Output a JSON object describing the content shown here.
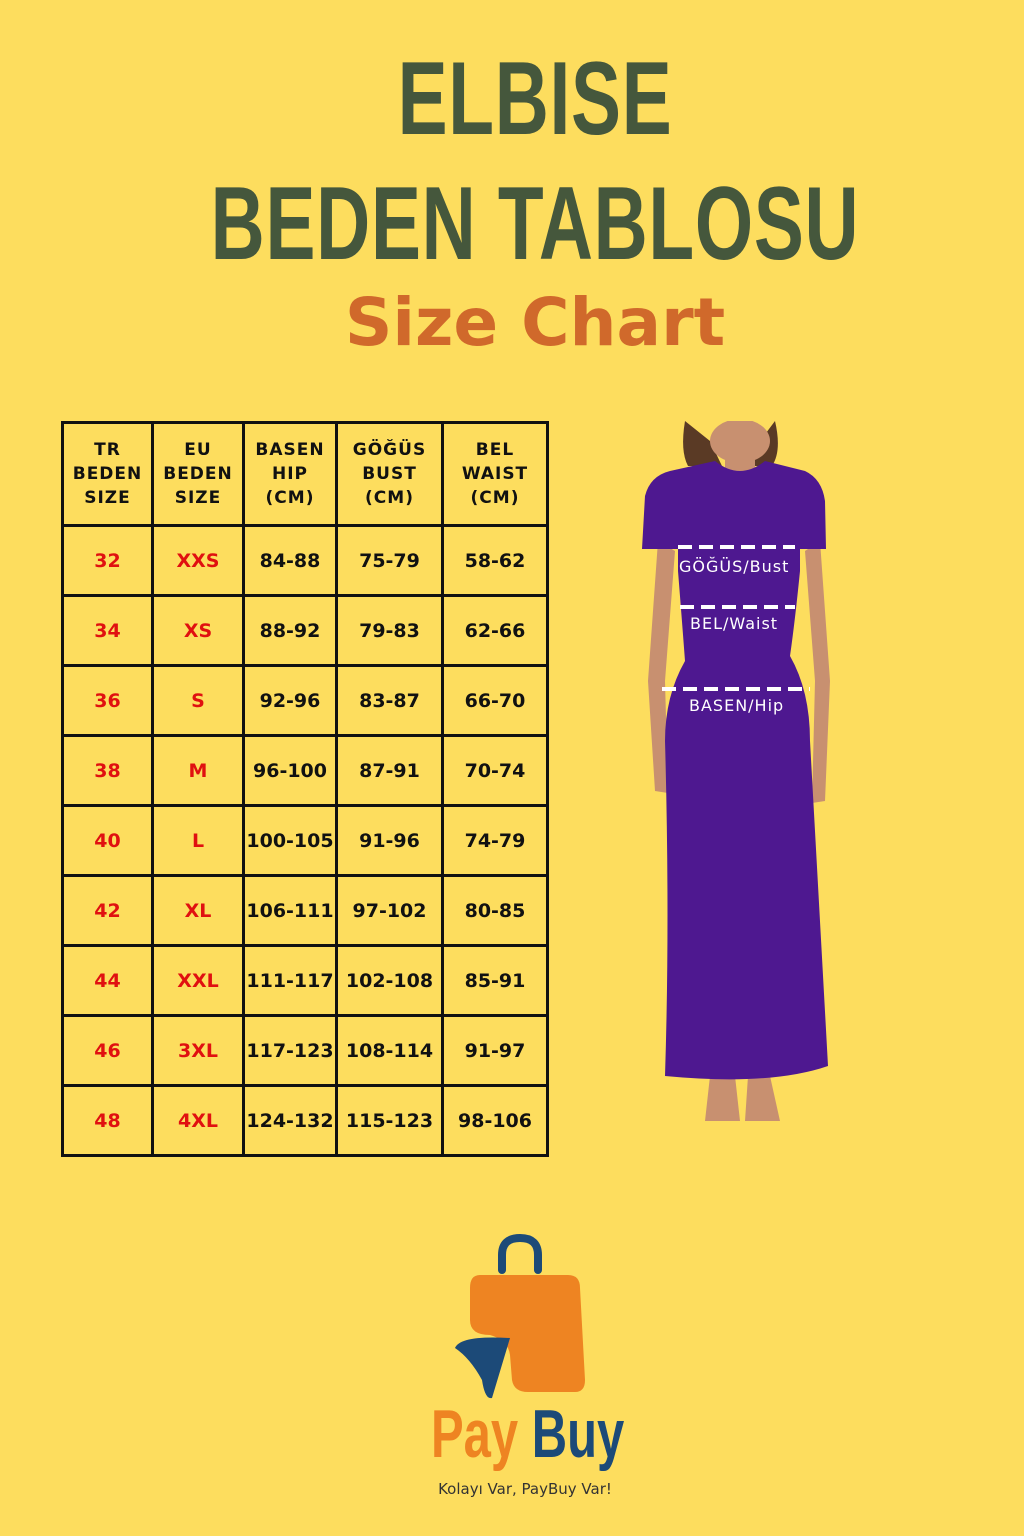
{
  "title": {
    "line1": "ELBISE",
    "line2": "BEDEN TABLOSU",
    "subtitle": "Size Chart"
  },
  "table": {
    "headers": [
      [
        "TR",
        "BEDEN",
        "SIZE"
      ],
      [
        "EU",
        "BEDEN",
        "SIZE"
      ],
      [
        "BASEN",
        "HIP",
        "(CM)"
      ],
      [
        "GÖĞÜS",
        "BUST",
        "(CM)"
      ],
      [
        "BEL",
        "WAIST",
        "(CM)"
      ]
    ],
    "rows": [
      [
        "32",
        "XXS",
        "84-88",
        "75-79",
        "58-62"
      ],
      [
        "34",
        "XS",
        "88-92",
        "79-83",
        "62-66"
      ],
      [
        "36",
        "S",
        "92-96",
        "83-87",
        "66-70"
      ],
      [
        "38",
        "M",
        "96-100",
        "87-91",
        "70-74"
      ],
      [
        "40",
        "L",
        "100-105",
        "91-96",
        "74-79"
      ],
      [
        "42",
        "XL",
        "106-111",
        "97-102",
        "80-85"
      ],
      [
        "44",
        "XXL",
        "111-117",
        "102-108",
        "85-91"
      ],
      [
        "46",
        "3XL",
        "117-123",
        "108-114",
        "91-97"
      ],
      [
        "48",
        "4XL",
        "124-132",
        "115-123",
        "98-106"
      ]
    ]
  },
  "figure": {
    "bust_label": "GÖĞÜS/Bust",
    "waist_label": "BEL/Waist",
    "hip_label": "BASEN/Hip",
    "dress_color": "#4e1890"
  },
  "brand": {
    "pay": "Pay",
    "buy": "Buy",
    "tagline": "Kolayı Var, PayBuy Var!",
    "orange": "#ee8422",
    "blue": "#1c4a78"
  },
  "colors": {
    "background": "#fddd5e",
    "title": "#45573c",
    "subtitle": "#d0692b",
    "size_red": "#e01010"
  }
}
